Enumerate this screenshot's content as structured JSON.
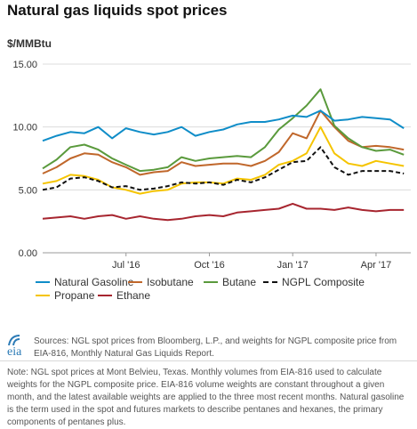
{
  "title": "Natural gas liquids spot prices",
  "unit_label": "$/MMBtu",
  "sources_text": "Sources: NGL spot prices from Bloomberg, L.P., and weights for NGPL composite price from EIA-816, Monthly Natural Gas Liquids Report.",
  "note_text": "Note: NGL spot prices at Mont Belvieu, Texas. Monthly volumes from EIA-816 used to calculate weights for the NGPL composite price. EIA-816 volume weights are constant throughout a given month, and the latest available weights are applied to the three most recent months. Natural gasoline is the term used in the spot and futures markets to describe pentanes and hexanes, the primary components of pentanes plus.",
  "logo_text": "eia",
  "chart_data": {
    "type": "line",
    "title": "Natural gas liquids spot prices",
    "ylabel": "$/MMBtu",
    "xlabel": "",
    "ylim": [
      0,
      15
    ],
    "yticks": [
      "0.00",
      "5.00",
      "10.00",
      "15.00"
    ],
    "xticks": [
      {
        "label": "Jul '16",
        "month": 3
      },
      {
        "label": "Oct '16",
        "month": 6
      },
      {
        "label": "Jan '17",
        "month": 9
      },
      {
        "label": "Apr '17",
        "month": 12
      }
    ],
    "x_months": [
      0,
      0.5,
      1,
      1.5,
      2,
      2.5,
      3,
      3.5,
      4,
      4.5,
      5,
      5.5,
      6,
      6.5,
      7,
      7.5,
      8,
      8.5,
      9,
      9.5,
      10,
      10.5,
      11,
      11.5,
      12,
      12.5,
      13
    ],
    "grid": "horizontal",
    "legend_position": "bottom",
    "series": [
      {
        "name": "Natural Gasoline",
        "color": "#0f8dc8",
        "dash": false,
        "values": [
          8.9,
          9.3,
          9.6,
          9.5,
          10.0,
          9.1,
          9.9,
          9.6,
          9.4,
          9.6,
          10.0,
          9.3,
          9.6,
          9.8,
          10.2,
          10.4,
          10.4,
          10.6,
          10.9,
          10.8,
          11.3,
          10.5,
          10.6,
          10.8,
          10.7,
          10.6,
          9.9
        ]
      },
      {
        "name": "Isobutane",
        "color": "#c0672b",
        "dash": false,
        "values": [
          6.3,
          6.8,
          7.5,
          7.9,
          7.8,
          7.2,
          6.8,
          6.2,
          6.4,
          6.5,
          7.2,
          6.9,
          7.0,
          7.1,
          7.1,
          6.9,
          7.3,
          8.0,
          9.5,
          9.1,
          11.3,
          10.0,
          8.9,
          8.4,
          8.5,
          8.4,
          8.2
        ]
      },
      {
        "name": "Butane",
        "color": "#5a9a3c",
        "dash": false,
        "values": [
          6.7,
          7.4,
          8.4,
          8.6,
          8.2,
          7.5,
          7.0,
          6.5,
          6.6,
          6.8,
          7.6,
          7.3,
          7.5,
          7.6,
          7.7,
          7.6,
          8.4,
          9.8,
          10.7,
          11.7,
          13.0,
          10.1,
          9.1,
          8.4,
          8.1,
          8.2,
          7.8
        ]
      },
      {
        "name": "NGPL Composite",
        "color": "#111111",
        "dash": true,
        "values": [
          5.0,
          5.2,
          5.9,
          6.0,
          5.7,
          5.2,
          5.3,
          5.0,
          5.1,
          5.3,
          5.6,
          5.5,
          5.6,
          5.4,
          5.8,
          5.6,
          6.0,
          6.6,
          7.2,
          7.3,
          8.4,
          6.8,
          6.2,
          6.5,
          6.5,
          6.5,
          6.3
        ]
      },
      {
        "name": "Propane",
        "color": "#f5c400",
        "dash": false,
        "values": [
          5.5,
          5.7,
          6.2,
          6.1,
          5.8,
          5.2,
          5.0,
          4.7,
          4.9,
          5.0,
          5.5,
          5.6,
          5.6,
          5.5,
          5.9,
          5.8,
          6.2,
          7.0,
          7.3,
          7.9,
          10.0,
          7.9,
          7.1,
          6.9,
          7.3,
          7.1,
          6.9
        ]
      },
      {
        "name": "Ethane",
        "color": "#a7252f",
        "dash": false,
        "values": [
          2.7,
          2.8,
          2.9,
          2.7,
          2.9,
          3.0,
          2.7,
          2.9,
          2.7,
          2.6,
          2.7,
          2.9,
          3.0,
          2.9,
          3.2,
          3.3,
          3.4,
          3.5,
          3.9,
          3.5,
          3.5,
          3.4,
          3.6,
          3.4,
          3.3,
          3.4,
          3.4
        ]
      }
    ]
  }
}
